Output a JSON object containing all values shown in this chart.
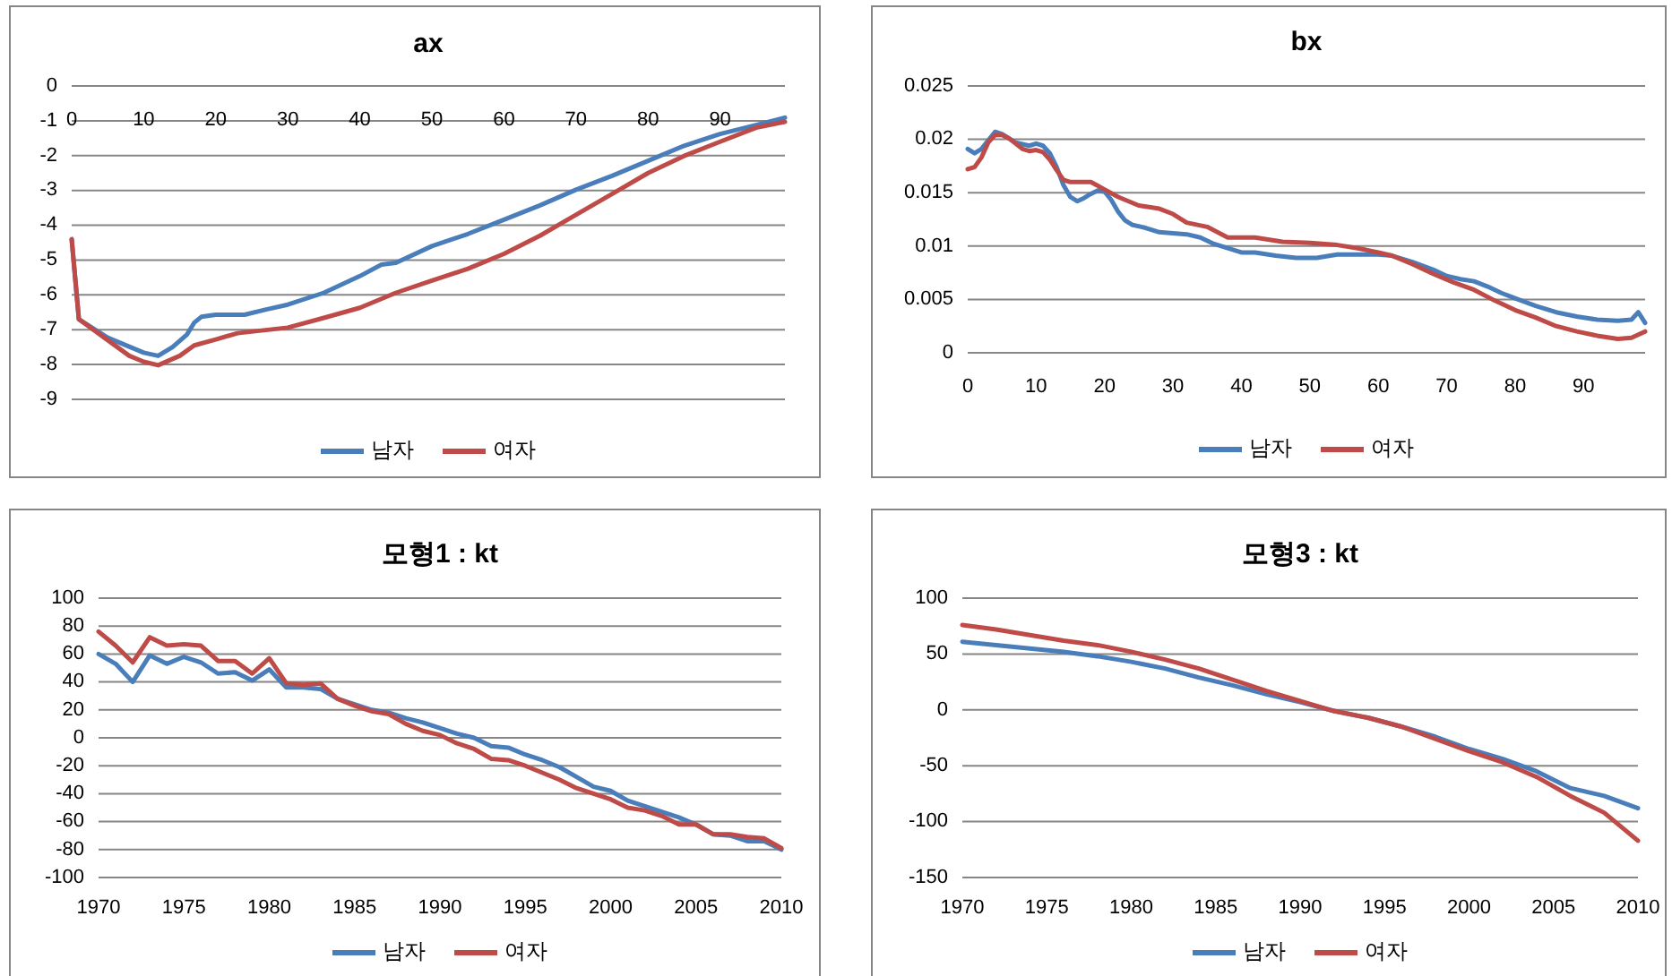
{
  "chart_data": [
    {
      "type": "line",
      "title": "ax",
      "grid": "y",
      "legend": "bottom",
      "xlim": [
        0,
        99
      ],
      "xticks": [
        0,
        10,
        20,
        30,
        40,
        50,
        60,
        70,
        80,
        90
      ],
      "ylim": [
        -9,
        0
      ],
      "yticks": [
        -9,
        -8,
        -7,
        -6,
        -5,
        -4,
        -3,
        -2,
        -1,
        0
      ],
      "series": [
        {
          "name": "남자",
          "color": "#4a7ebb",
          "x": [
            0,
            1,
            5,
            10,
            12,
            14,
            16,
            17,
            18,
            20,
            24,
            27,
            30,
            35,
            40,
            43,
            45,
            50,
            55,
            60,
            65,
            70,
            75,
            80,
            85,
            90,
            95,
            99
          ],
          "values": [
            -4.4,
            -6.7,
            -7.23,
            -7.66,
            -7.75,
            -7.5,
            -7.14,
            -6.8,
            -6.63,
            -6.57,
            -6.57,
            -6.42,
            -6.28,
            -5.94,
            -5.46,
            -5.13,
            -5.08,
            -4.6,
            -4.25,
            -3.84,
            -3.43,
            -2.98,
            -2.58,
            -2.15,
            -1.72,
            -1.38,
            -1.12,
            -0.91
          ]
        },
        {
          "name": "여자",
          "color": "#be4b48",
          "x": [
            0,
            1,
            5,
            8,
            10,
            12,
            15,
            17,
            20,
            23,
            30,
            35,
            40,
            45,
            50,
            55,
            60,
            65,
            70,
            75,
            80,
            85,
            90,
            95,
            99
          ],
          "values": [
            -4.4,
            -6.7,
            -7.3,
            -7.75,
            -7.92,
            -8.02,
            -7.75,
            -7.45,
            -7.28,
            -7.1,
            -6.94,
            -6.66,
            -6.37,
            -5.94,
            -5.59,
            -5.25,
            -4.82,
            -4.3,
            -3.7,
            -3.1,
            -2.5,
            -2.01,
            -1.6,
            -1.2,
            -1.03
          ]
        }
      ]
    },
    {
      "type": "line",
      "title": "bx",
      "grid": "y",
      "legend": "bottom",
      "xlim": [
        0,
        99
      ],
      "xticks": [
        0,
        10,
        20,
        30,
        40,
        50,
        60,
        70,
        80,
        90
      ],
      "ylim": [
        0,
        0.025
      ],
      "yticks": [
        0,
        0.005,
        0.01,
        0.015,
        0.02,
        0.025
      ],
      "series": [
        {
          "name": "남자",
          "color": "#4a7ebb",
          "x": [
            0,
            1,
            2,
            4,
            5,
            7,
            9,
            10,
            11,
            12,
            13,
            14,
            15,
            16,
            17,
            18,
            19,
            20,
            21,
            22,
            23,
            24,
            26,
            28,
            30,
            32,
            34,
            36,
            38,
            40,
            42,
            45,
            48,
            51,
            54,
            57,
            60,
            62,
            65,
            68,
            70,
            72,
            74,
            76,
            78,
            80,
            83,
            86,
            89,
            92,
            95,
            97,
            98,
            99
          ],
          "values": [
            0.0191,
            0.0187,
            0.0191,
            0.0207,
            0.0205,
            0.0197,
            0.0194,
            0.0196,
            0.0194,
            0.0187,
            0.0174,
            0.0157,
            0.0146,
            0.0142,
            0.0145,
            0.0149,
            0.0152,
            0.0151,
            0.0143,
            0.0132,
            0.0124,
            0.012,
            0.0117,
            0.0113,
            0.0112,
            0.0111,
            0.0108,
            0.0102,
            0.0098,
            0.0094,
            0.0094,
            0.0091,
            0.0089,
            0.0089,
            0.0092,
            0.0092,
            0.0092,
            0.0091,
            0.0085,
            0.0078,
            0.0072,
            0.0069,
            0.0067,
            0.0062,
            0.0056,
            0.0051,
            0.0044,
            0.0038,
            0.0034,
            0.0031,
            0.003,
            0.0031,
            0.0038,
            0.0028
          ]
        },
        {
          "name": "여자",
          "color": "#be4b48",
          "x": [
            0,
            1,
            2,
            3,
            4,
            5,
            6,
            8,
            9,
            10,
            11,
            12,
            13,
            14,
            15,
            18,
            20,
            22,
            25,
            28,
            30,
            32,
            35,
            38,
            42,
            46,
            50,
            54,
            57,
            60,
            62,
            65,
            68,
            71,
            74,
            77,
            80,
            83,
            86,
            89,
            92,
            95,
            97,
            99
          ],
          "values": [
            0.0172,
            0.0174,
            0.0183,
            0.0197,
            0.0204,
            0.0204,
            0.0201,
            0.0191,
            0.0189,
            0.019,
            0.0188,
            0.0181,
            0.0171,
            0.0162,
            0.016,
            0.016,
            0.0153,
            0.0146,
            0.0138,
            0.0135,
            0.013,
            0.0122,
            0.0118,
            0.0108,
            0.0108,
            0.0104,
            0.0103,
            0.0101,
            0.0098,
            0.0094,
            0.0091,
            0.0083,
            0.0074,
            0.0066,
            0.0059,
            0.0049,
            0.004,
            0.0033,
            0.0025,
            0.002,
            0.0016,
            0.0013,
            0.0014,
            0.002
          ]
        }
      ]
    },
    {
      "type": "line",
      "title": "모형1 : kt",
      "grid": "y",
      "legend": "bottom",
      "xlim": [
        1970,
        2010
      ],
      "xticks": [
        1970,
        1975,
        1980,
        1985,
        1990,
        1995,
        2000,
        2005,
        2010
      ],
      "ylim": [
        -100,
        100
      ],
      "yticks": [
        -100,
        -80,
        -60,
        -40,
        -20,
        0,
        20,
        40,
        60,
        80,
        100
      ],
      "x": [
        1970,
        1971,
        1972,
        1973,
        1974,
        1975,
        1976,
        1977,
        1978,
        1979,
        1980,
        1981,
        1982,
        1983,
        1984,
        1985,
        1986,
        1987,
        1988,
        1989,
        1990,
        1991,
        1992,
        1993,
        1994,
        1995,
        1996,
        1997,
        1998,
        1999,
        2000,
        2001,
        2002,
        2003,
        2004,
        2005,
        2006,
        2007,
        2008,
        2009,
        2010
      ],
      "series": [
        {
          "name": "남자",
          "color": "#4a7ebb",
          "values": [
            60,
            53,
            40,
            59,
            53,
            58,
            54,
            46,
            47,
            41,
            49,
            36,
            36,
            35,
            28,
            24,
            20,
            18,
            14,
            11,
            7,
            3,
            0,
            -6,
            -7,
            -12,
            -16,
            -21,
            -28,
            -35,
            -38,
            -45,
            -49,
            -53,
            -57,
            -62,
            -69,
            -70,
            -74,
            -74,
            -80
          ]
        },
        {
          "name": "여자",
          "color": "#be4b48",
          "values": [
            76,
            66,
            54,
            72,
            66,
            67,
            66,
            55,
            55,
            46,
            57,
            39,
            38,
            39,
            28,
            23,
            19,
            17,
            10,
            5,
            2,
            -4,
            -8,
            -15,
            -16,
            -20,
            -25,
            -30,
            -36,
            -40,
            -44,
            -50,
            -52,
            -56,
            -62,
            -62,
            -69,
            -69,
            -71,
            -72,
            -79
          ]
        }
      ]
    },
    {
      "type": "line",
      "title": "모형3 : kt",
      "grid": "y",
      "legend": "bottom",
      "xlim": [
        1970,
        2010
      ],
      "xticks": [
        1970,
        1975,
        1980,
        1985,
        1990,
        1995,
        2000,
        2005,
        2010
      ],
      "ylim": [
        -150,
        100
      ],
      "yticks": [
        -150,
        -100,
        -50,
        0,
        50,
        100
      ],
      "x": [
        1970,
        1972,
        1974,
        1976,
        1978,
        1980,
        1982,
        1984,
        1986,
        1988,
        1990,
        1992,
        1994,
        1996,
        1998,
        2000,
        2002,
        2004,
        2006,
        2008,
        2010
      ],
      "series": [
        {
          "name": "남자",
          "color": "#4a7ebb",
          "values": [
            61,
            58,
            55,
            52,
            48,
            43,
            37,
            29,
            22,
            14,
            7,
            -1,
            -7,
            -15,
            -24,
            -35,
            -44,
            -55,
            -70,
            -77,
            -88
          ]
        },
        {
          "name": "여자",
          "color": "#be4b48",
          "values": [
            76,
            72,
            67,
            62,
            58,
            52,
            45,
            37,
            27,
            17,
            8,
            -1,
            -7,
            -15,
            -26,
            -37,
            -47,
            -60,
            -77,
            -92,
            -117
          ]
        }
      ]
    }
  ]
}
